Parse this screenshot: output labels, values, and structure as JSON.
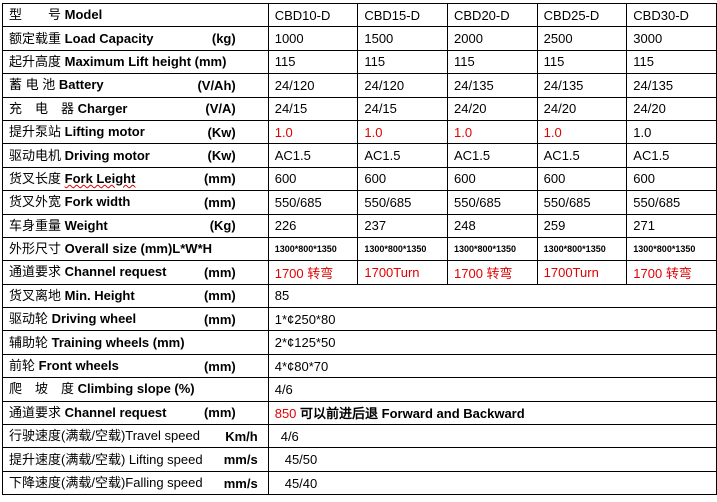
{
  "models": [
    "CBD10-D",
    "CBD15-D",
    "CBD20-D",
    "CBD25-D",
    "CBD30-D"
  ],
  "rows": [
    {
      "cn": "型　　号",
      "en": "Model",
      "unit": ""
    },
    {
      "cn": "额定载重 ",
      "en": "Load Capacity",
      "unit": "(kg)",
      "values": [
        "1000",
        "1500",
        "2000",
        "2500",
        "3000"
      ]
    },
    {
      "cn": "起升高度",
      "en": "Maximum Lift height (mm)",
      "unit": "",
      "values": [
        "115",
        "115",
        "115",
        "115",
        "115"
      ]
    },
    {
      "cn": "蓄 电 池",
      "en": "Battery",
      "unit": "(V/Ah)",
      "values": [
        "24/120",
        "24/120",
        "24/135",
        "24/135",
        "24/135"
      ]
    },
    {
      "cn": "充　电　器",
      "en": "Charger",
      "unit": "(V/A)",
      "values": [
        "24/15",
        "24/15",
        "24/20",
        "24/20",
        "24/20"
      ]
    },
    {
      "cn": "提升泵站",
      "en": "Lifting motor",
      "unit": "(Kw)",
      "values": [
        "1.0",
        "1.0",
        "1.0",
        "1.0",
        "1.0"
      ],
      "red": [
        true,
        true,
        true,
        true,
        false
      ]
    },
    {
      "cn": "驱动电机",
      "en": "Driving motor",
      "unit": "(Kw)",
      "values": [
        "AC1.5",
        "AC1.5",
        "AC1.5",
        "AC1.5",
        "AC1.5"
      ]
    },
    {
      "cn": "货叉长度",
      "en": "Fork Leight",
      "unit": "(mm)",
      "values": [
        "600",
        "600",
        "600",
        "600",
        "600"
      ]
    },
    {
      "cn": "货叉外宽",
      "en": "Fork width",
      "unit": "(mm)",
      "values": [
        "550/685",
        "550/685",
        "550/685",
        "550/685",
        "550/685"
      ]
    },
    {
      "cn": "车身重量",
      "en": "Weight",
      "unit": "(Kg)",
      "values": [
        "226",
        "237",
        "248",
        "259",
        "271"
      ]
    },
    {
      "cn": "外形尺寸",
      "en": "Overall size (mm)L*W*H",
      "unit": "",
      "values": [
        "1300*800*1350",
        "1300*800*1350",
        "1300*800*1350",
        "1300*800*1350",
        "1300*800*1350"
      ]
    },
    {
      "cn": "通道要求 ",
      "en": "Channel request",
      "unit": "(mm)",
      "values": [
        "1700 转弯",
        "1700Turn",
        "1700 转弯",
        "1700Turn",
        "1700 转弯"
      ]
    },
    {
      "cn": "货叉离地",
      "en": "Min. Height",
      "unit": "(mm)",
      "value": "85"
    },
    {
      "cn": "驱动轮 ",
      "en": "Driving wheel",
      "unit": "(mm)",
      "value": "1*¢250*80"
    },
    {
      "cn": "辅助轮",
      "en": "Training wheels (mm)",
      "unit": "",
      "value": "2*¢125*50"
    },
    {
      "cn": "前轮",
      "en": "Front wheels",
      "unit": "(mm)",
      "value": "4*¢80*70"
    },
    {
      "cn": "爬　坡　度",
      "en": "Climbing slope (%)",
      "unit": "",
      "value": "4/6"
    },
    {
      "cn": "通道要求 ",
      "en": "Channel request",
      "unit": "(mm)",
      "value_red": "850",
      "value": " 可以前进后退 Forward and Backward"
    },
    {
      "cn": "行驶速度(满载/空载)Travel speed",
      "en": "",
      "unit": "Km/h",
      "value": "4/6"
    },
    {
      "cn": "提升速度(满载/空载) Lifting speed",
      "en": "",
      "unit": "mm/s",
      "value": "45/50"
    },
    {
      "cn": "下降速度(满载/空载)Falling speed",
      "en": "",
      "unit": "mm/s",
      "value": "45/40"
    }
  ],
  "colors": {
    "highlight": "#e00000"
  }
}
